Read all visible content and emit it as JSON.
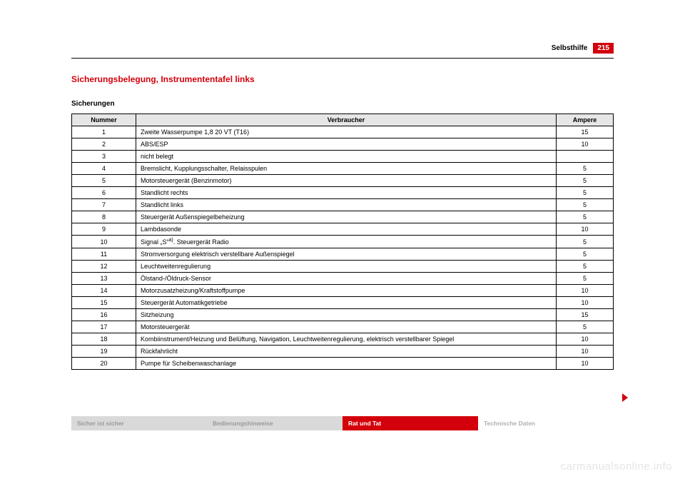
{
  "header": {
    "section": "Selbsthilfe",
    "page_number": "215"
  },
  "title": "Sicherungsbelegung, Instrumententafel links",
  "subtitle": "Sicherungen",
  "table": {
    "columns": [
      "Nummer",
      "Verbraucher",
      "Ampere"
    ],
    "rows": [
      [
        "1",
        "Zweite Wasserpumpe 1,8 20 VT (T16)",
        "15"
      ],
      [
        "2",
        "ABS/ESP",
        "10"
      ],
      [
        "3",
        "nicht belegt",
        ""
      ],
      [
        "4",
        "Bremslicht, Kupplungsschalter, Relaisspulen",
        "5"
      ],
      [
        "5",
        "Motorsteuergerät (Benzinmotor)",
        "5"
      ],
      [
        "6",
        "Standlicht rechts",
        "5"
      ],
      [
        "7",
        "Standlicht links",
        "5"
      ],
      [
        "8",
        "Steuergerät Außenspiegelbeheizung",
        "5"
      ],
      [
        "9",
        "Lambdasonde",
        "10"
      ],
      [
        "10",
        "Signal „S“a). Steuergerät Radio",
        "5"
      ],
      [
        "11",
        "Stromversorgung elektrisch verstellbare Außenspiegel",
        "5"
      ],
      [
        "12",
        "Leuchtweitenregulierung",
        "5"
      ],
      [
        "13",
        "Ölstand-/Öldruck-Sensor",
        "5"
      ],
      [
        "14",
        "Motorzusatzheizung/Kraftstoffpumpe",
        "10"
      ],
      [
        "15",
        "Steuergerät Automatikgetriebe",
        "10"
      ],
      [
        "16",
        "Sitzheizung",
        "15"
      ],
      [
        "17",
        "Motorsteuergerät",
        "5"
      ],
      [
        "18",
        "Kombiinstrument/Heizung und Belüftung, Navigation, Leuchtweitenregulierung, elektrisch verstellbarer Spiegel",
        "10"
      ],
      [
        "19",
        "Rückfahrlicht",
        "10"
      ],
      [
        "20",
        "Pumpe für Scheibenwaschanlage",
        "10"
      ]
    ]
  },
  "tabs": [
    {
      "label": "Sicher ist sicher",
      "style": "grey"
    },
    {
      "label": "Bedienungshinweise",
      "style": "grey"
    },
    {
      "label": "Rat und Tat",
      "style": "red"
    },
    {
      "label": "Technische Daten",
      "style": "plain"
    }
  ],
  "watermark": "carmanualsonline.info"
}
